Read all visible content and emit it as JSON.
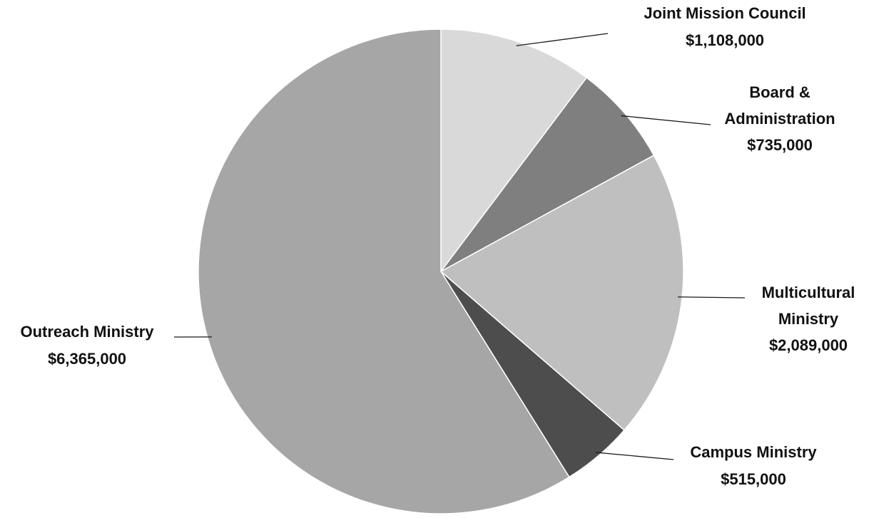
{
  "chart_data": {
    "type": "pie",
    "start_angle_deg": 0,
    "direction": "clockwise",
    "slices": [
      {
        "name": "Joint Mission Council",
        "label_lines": [
          "Joint Mission Council"
        ],
        "value": 1108000,
        "value_label": "$1,108,000",
        "color": "#d9d9d9"
      },
      {
        "name": "Board & Administration",
        "label_lines": [
          "Board &",
          "Administration"
        ],
        "value": 735000,
        "value_label": "$735,000",
        "color": "#7f7f7f"
      },
      {
        "name": "Multicultural Ministry",
        "label_lines": [
          "Multicultural",
          "Ministry"
        ],
        "value": 2089000,
        "value_label": "$2,089,000",
        "color": "#bfbfbf"
      },
      {
        "name": "Campus Ministry",
        "label_lines": [
          "Campus Ministry"
        ],
        "value": 515000,
        "value_label": "$515,000",
        "color": "#4d4d4d"
      },
      {
        "name": "Outreach Ministry",
        "label_lines": [
          "Outreach Ministry"
        ],
        "value": 6365000,
        "value_label": "$6,365,000",
        "color": "#a6a6a6"
      }
    ]
  }
}
